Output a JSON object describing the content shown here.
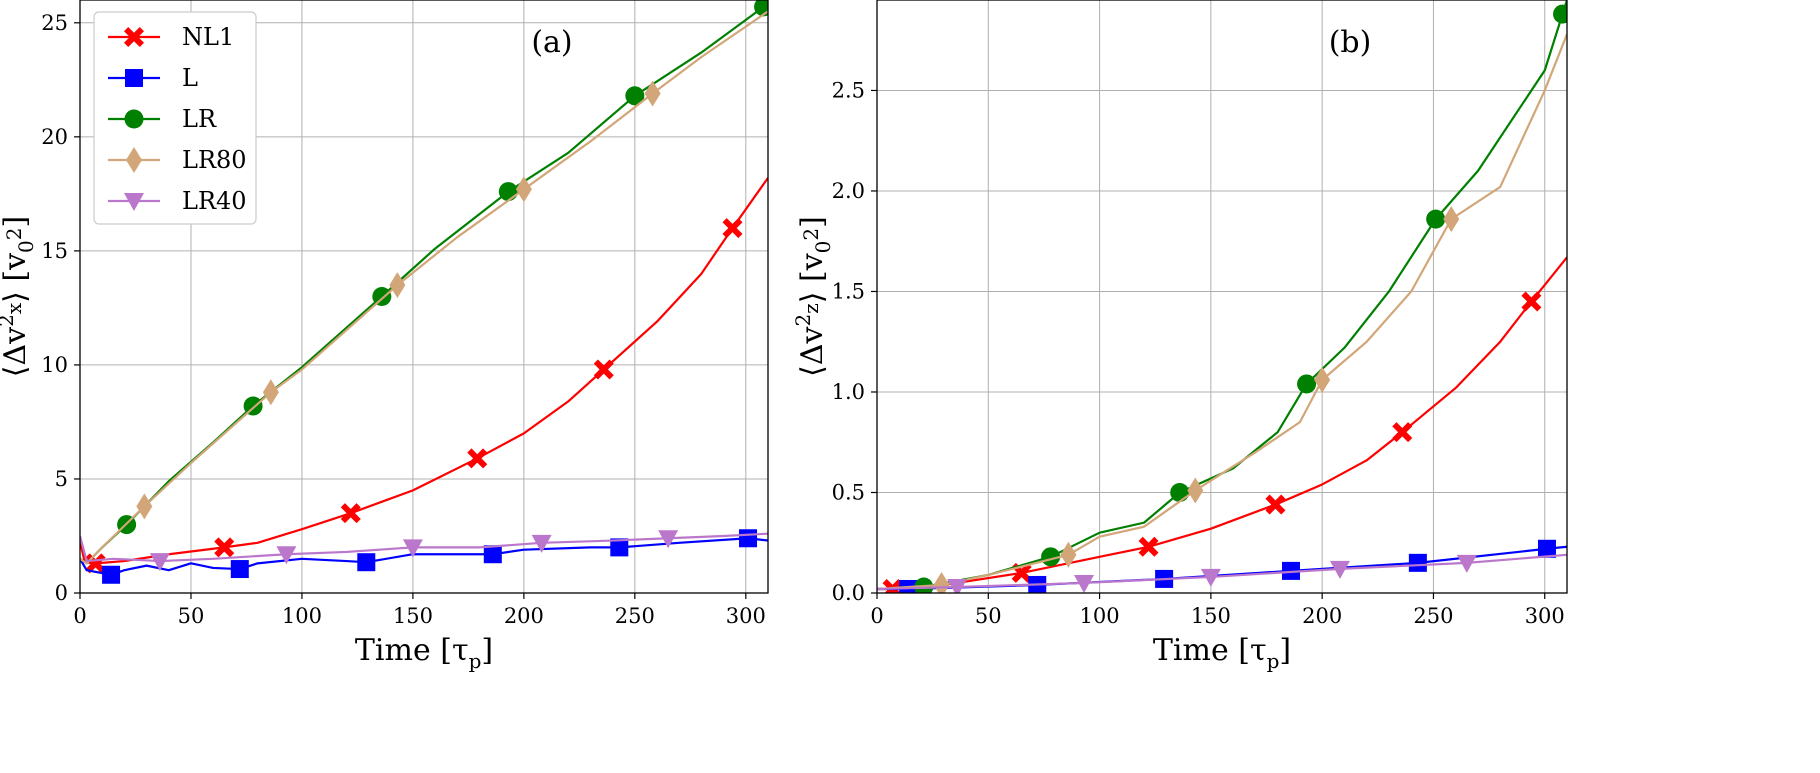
{
  "chart_data": [
    {
      "type": "line",
      "panel_label": "(a)",
      "xlabel": "Time [τp]",
      "ylabel": "⟨Δvx²⟩ [v0²]",
      "ylabel_parts": {
        "open": "⟨Δv",
        "sup": "2",
        "sub": "x",
        "close": "⟩ [v",
        "unit_sub": "0",
        "unit_sup": "2",
        "end": "]"
      },
      "xlabel_parts": {
        "main": "Time [τ",
        "sub": "p",
        "end": "]"
      },
      "xlim": [
        0,
        310
      ],
      "ylim": [
        0,
        26
      ],
      "xticks": [
        0,
        50,
        100,
        150,
        200,
        250,
        300
      ],
      "yticks": [
        0,
        5,
        10,
        15,
        20,
        25
      ],
      "grid": true,
      "legend": "top-left",
      "series": [
        {
          "name": "NL1",
          "color": "#ff0000",
          "marker": "x",
          "x": [
            0,
            2,
            5,
            7,
            20,
            40,
            65,
            80,
            100,
            122,
            150,
            179,
            200,
            220,
            236,
            260,
            280,
            294,
            310
          ],
          "y": [
            2.3,
            1.4,
            1.3,
            1.3,
            1.4,
            1.7,
            2.0,
            2.2,
            2.8,
            3.5,
            4.5,
            5.9,
            7.0,
            8.4,
            9.8,
            11.9,
            14.0,
            16.0,
            18.2
          ],
          "markers_x": [
            7,
            65,
            122,
            179,
            236,
            294
          ]
        },
        {
          "name": "L",
          "color": "#0000ff",
          "marker": "square",
          "x": [
            0,
            3,
            14,
            20,
            30,
            40,
            50,
            60,
            72,
            80,
            100,
            120,
            129,
            150,
            186,
            200,
            230,
            243,
            270,
            301,
            310
          ],
          "y": [
            1.5,
            1.0,
            0.8,
            1.0,
            1.2,
            1.0,
            1.3,
            1.1,
            1.05,
            1.3,
            1.5,
            1.4,
            1.35,
            1.7,
            1.7,
            1.9,
            2.0,
            2.0,
            2.2,
            2.4,
            2.3
          ],
          "markers_x": [
            14,
            72,
            129,
            186,
            243,
            301
          ]
        },
        {
          "name": "LR",
          "color": "#008000",
          "marker": "circle",
          "x": [
            0,
            3,
            10,
            21,
            40,
            60,
            78,
            100,
            136,
            160,
            193,
            220,
            250,
            280,
            308
          ],
          "y": [
            1.5,
            1.3,
            2.0,
            3.0,
            4.9,
            6.6,
            8.2,
            9.9,
            13.0,
            15.1,
            17.6,
            19.3,
            21.8,
            23.7,
            25.7
          ],
          "markers_x": [
            21,
            78,
            136,
            193,
            250,
            308
          ]
        },
        {
          "name": "LR80",
          "color": "#d2a679",
          "marker": "diamond",
          "x": [
            0,
            3,
            10,
            29,
            50,
            86,
            100,
            143,
            170,
            200,
            230,
            258,
            280,
            310
          ],
          "y": [
            1.5,
            1.3,
            2.0,
            3.8,
            5.7,
            8.8,
            9.8,
            13.5,
            15.6,
            17.7,
            19.8,
            21.9,
            23.5,
            25.5
          ],
          "markers_x": [
            29,
            86,
            143,
            200,
            258
          ]
        },
        {
          "name": "LR40",
          "color": "#bb77cc",
          "marker": "triangle-down",
          "x": [
            0,
            3,
            15,
            36,
            60,
            93,
            120,
            150,
            180,
            208,
            240,
            265,
            290,
            310
          ],
          "y": [
            2.5,
            1.4,
            1.5,
            1.4,
            1.5,
            1.7,
            1.8,
            2.0,
            2.0,
            2.2,
            2.3,
            2.4,
            2.5,
            2.6
          ],
          "markers_x": [
            36,
            93,
            150,
            208,
            265
          ]
        }
      ]
    },
    {
      "type": "line",
      "panel_label": "(b)",
      "xlabel": "Time [τp]",
      "ylabel": "⟨Δvz²⟩ [v0²]",
      "ylabel_parts": {
        "open": "⟨Δv",
        "sup": "2",
        "sub": "z",
        "close": "⟩ [v",
        "unit_sub": "0",
        "unit_sup": "2",
        "end": "]"
      },
      "xlabel_parts": {
        "main": "Time [τ",
        "sub": "p",
        "end": "]"
      },
      "xlim": [
        0,
        310
      ],
      "ylim": [
        0,
        2.95
      ],
      "xticks": [
        0,
        50,
        100,
        150,
        200,
        250,
        300
      ],
      "yticks": [
        0,
        0.5,
        1.0,
        1.5,
        2.0,
        2.5
      ],
      "ytick_labels": [
        "0.0",
        "0.5",
        "1.0",
        "1.5",
        "2.0",
        "2.5"
      ],
      "grid": true,
      "legend": "none",
      "series": [
        {
          "name": "NL1",
          "color": "#ff0000",
          "marker": "x",
          "x": [
            0,
            7,
            30,
            65,
            100,
            122,
            150,
            179,
            200,
            220,
            236,
            260,
            280,
            294,
            310
          ],
          "y": [
            0.02,
            0.02,
            0.04,
            0.1,
            0.18,
            0.23,
            0.32,
            0.44,
            0.54,
            0.66,
            0.8,
            1.02,
            1.25,
            1.45,
            1.67
          ],
          "markers_x": [
            7,
            65,
            122,
            179,
            236,
            294
          ]
        },
        {
          "name": "L",
          "color": "#0000ff",
          "marker": "square",
          "x": [
            0,
            14,
            72,
            129,
            186,
            243,
            301,
            310
          ],
          "y": [
            0.02,
            0.02,
            0.04,
            0.07,
            0.11,
            0.15,
            0.22,
            0.23
          ],
          "markers_x": [
            14,
            72,
            129,
            186,
            243,
            301
          ]
        },
        {
          "name": "LR",
          "color": "#008000",
          "marker": "circle",
          "x": [
            0,
            21,
            50,
            78,
            100,
            120,
            136,
            160,
            180,
            193,
            210,
            230,
            251,
            270,
            300,
            310
          ],
          "y": [
            0.02,
            0.03,
            0.09,
            0.18,
            0.3,
            0.35,
            0.5,
            0.62,
            0.8,
            1.04,
            1.22,
            1.5,
            1.86,
            2.1,
            2.6,
            2.95
          ],
          "markers_x": [
            21,
            78,
            136,
            193,
            251,
            308
          ]
        },
        {
          "name": "LR80",
          "color": "#d2a679",
          "marker": "diamond",
          "x": [
            0,
            29,
            50,
            86,
            100,
            120,
            143,
            170,
            190,
            200,
            220,
            240,
            258,
            280,
            300,
            310
          ],
          "y": [
            0.02,
            0.04,
            0.09,
            0.19,
            0.28,
            0.33,
            0.51,
            0.7,
            0.85,
            1.06,
            1.25,
            1.5,
            1.86,
            2.02,
            2.5,
            2.78
          ],
          "markers_x": [
            29,
            86,
            143,
            200,
            258
          ]
        },
        {
          "name": "LR40",
          "color": "#bb77cc",
          "marker": "triangle-down",
          "x": [
            0,
            36,
            93,
            150,
            208,
            265,
            310
          ],
          "y": [
            0.02,
            0.03,
            0.05,
            0.08,
            0.12,
            0.15,
            0.19
          ],
          "markers_x": [
            36,
            93,
            150,
            208,
            265
          ]
        }
      ]
    }
  ]
}
